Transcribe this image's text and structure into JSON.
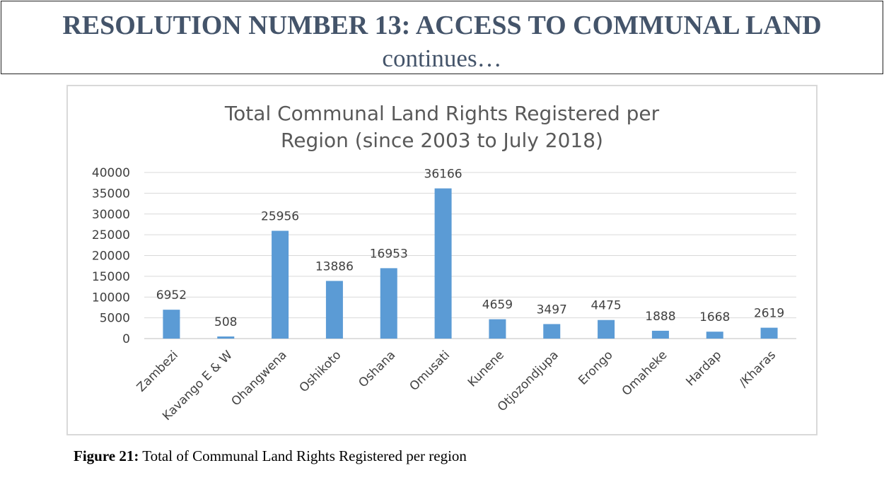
{
  "header": {
    "title": "RESOLUTION NUMBER 13: ACCESS TO COMMUNAL LAND",
    "subtitle": "continues…"
  },
  "caption": {
    "label": "Figure 21:",
    "text": "Total of Communal Land Rights Registered per region"
  },
  "colors": {
    "bar": "#5b9bd5",
    "heading": "#44546a",
    "grid": "#d9d9d9"
  },
  "chart_data": {
    "type": "bar",
    "title_lines": [
      "Total Communal Land Rights Registered per",
      "Region (since 2003 to July 2018)"
    ],
    "categories": [
      "Zambezi",
      "Kavango E & W",
      "Ohangwena",
      "Oshikoto",
      "Oshana",
      "Omusati",
      "Kunene",
      "Otjozondjupa",
      "Erongo",
      "Omaheke",
      "Hardap",
      "/Kharas"
    ],
    "values": [
      6952,
      508,
      25956,
      13886,
      16953,
      36166,
      4659,
      3497,
      4475,
      1888,
      1668,
      2619
    ],
    "yticks": [
      0,
      5000,
      10000,
      15000,
      20000,
      25000,
      30000,
      35000,
      40000
    ],
    "ylim": [
      0,
      40000
    ],
    "grid": true,
    "legend": "none"
  }
}
